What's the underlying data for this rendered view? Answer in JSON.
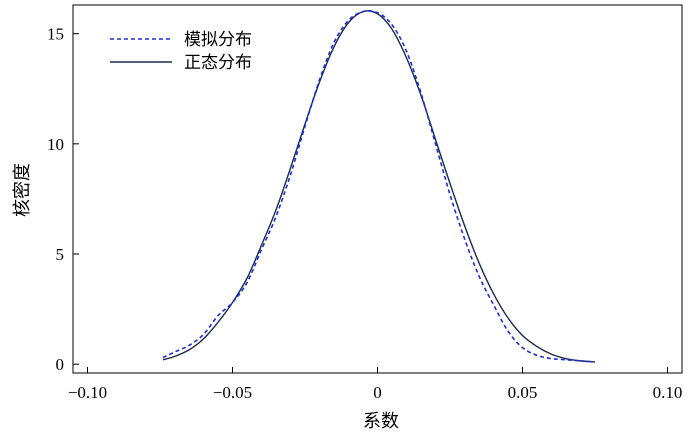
{
  "chart_data": {
    "type": "line",
    "title": "",
    "xlabel": "系数",
    "ylabel": "核密度",
    "xlim": [
      -0.105,
      0.105
    ],
    "ylim": [
      -0.4,
      16.3
    ],
    "xticks": [
      -0.1,
      -0.05,
      0,
      0.05,
      0.1
    ],
    "xtick_labels": [
      "−0.10",
      "−0.05",
      "0",
      "0.05",
      "0.10"
    ],
    "yticks": [
      0,
      5,
      10,
      15
    ],
    "ytick_labels": [
      "0",
      "5",
      "10",
      "15"
    ],
    "grid": false,
    "legend_position": "top-left",
    "series": [
      {
        "name": "模拟分布",
        "style": "dashed",
        "color": "#1f2bd8",
        "x": [
          -0.074,
          -0.07,
          -0.065,
          -0.06,
          -0.055,
          -0.05,
          -0.045,
          -0.04,
          -0.035,
          -0.03,
          -0.025,
          -0.02,
          -0.015,
          -0.01,
          -0.005,
          0.0,
          0.005,
          0.01,
          0.015,
          0.02,
          0.025,
          0.03,
          0.035,
          0.04,
          0.045,
          0.05,
          0.055,
          0.06,
          0.065,
          0.07,
          0.075
        ],
        "y": [
          0.3,
          0.55,
          0.85,
          1.35,
          2.2,
          2.8,
          3.7,
          5.2,
          6.7,
          8.6,
          10.8,
          12.9,
          14.6,
          15.6,
          16.0,
          15.95,
          15.4,
          14.2,
          12.3,
          10.0,
          7.7,
          5.7,
          4.0,
          2.7,
          1.5,
          0.75,
          0.4,
          0.25,
          0.2,
          0.15,
          0.1
        ]
      },
      {
        "name": "正态分布",
        "style": "solid",
        "color": "#1a2b4c",
        "x": [
          -0.074,
          -0.07,
          -0.065,
          -0.06,
          -0.055,
          -0.05,
          -0.045,
          -0.04,
          -0.035,
          -0.03,
          -0.025,
          -0.02,
          -0.015,
          -0.01,
          -0.005,
          0.0,
          0.005,
          0.01,
          0.015,
          0.02,
          0.025,
          0.03,
          0.035,
          0.04,
          0.045,
          0.05,
          0.055,
          0.06,
          0.065,
          0.07,
          0.075
        ],
        "y": [
          0.2,
          0.35,
          0.65,
          1.15,
          1.9,
          2.8,
          3.9,
          5.4,
          7.0,
          8.9,
          10.9,
          12.8,
          14.4,
          15.5,
          16.0,
          15.9,
          15.2,
          13.9,
          12.2,
          10.2,
          8.2,
          6.3,
          4.6,
          3.2,
          2.1,
          1.3,
          0.8,
          0.45,
          0.25,
          0.15,
          0.1
        ]
      }
    ]
  }
}
